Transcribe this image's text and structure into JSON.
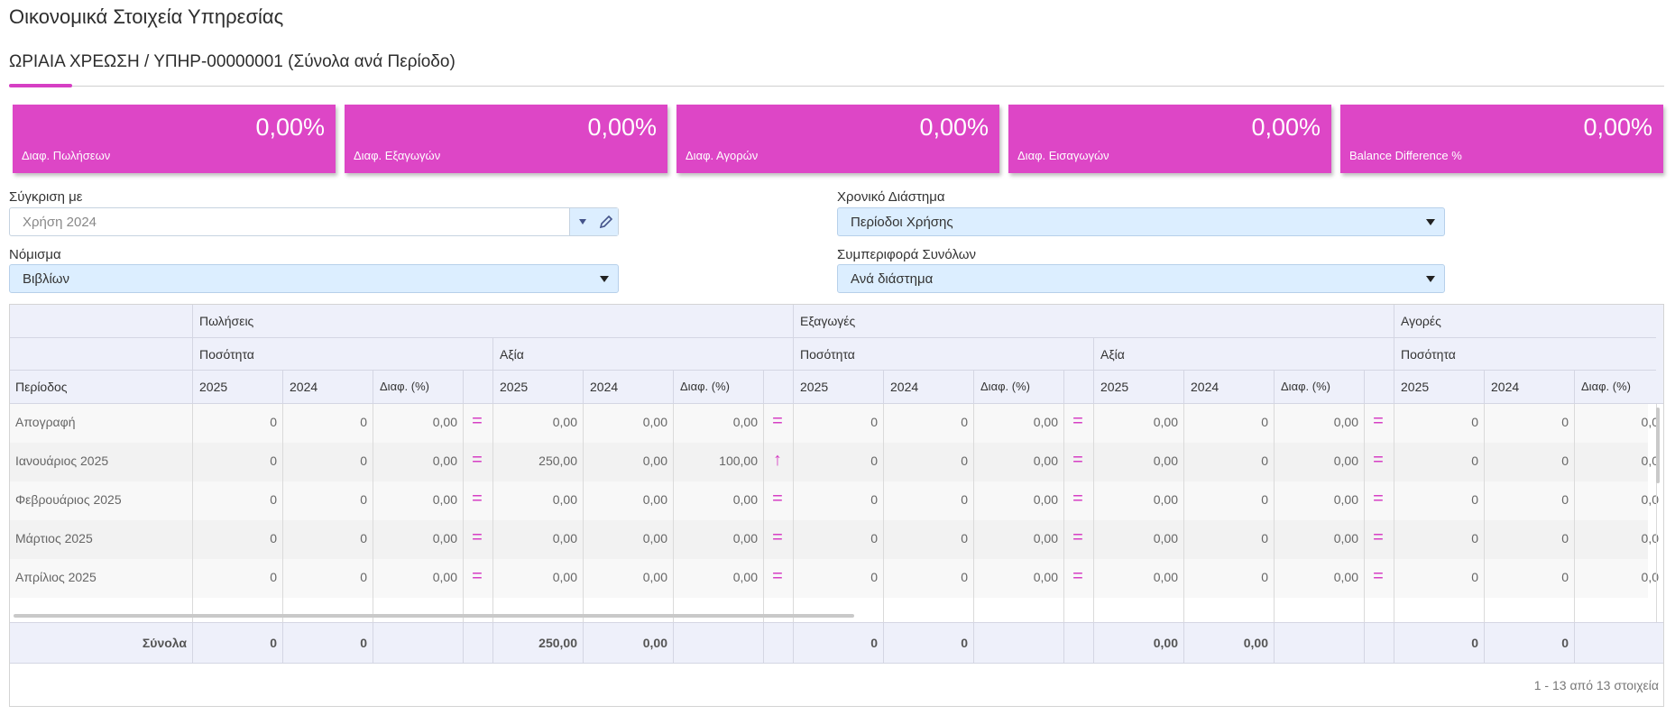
{
  "page": {
    "title": "Οικονομικά Στοιχεία Υπηρεσίας"
  },
  "tab": {
    "label": "ΩΡΙΑΙΑ ΧΡΕΩΣΗ / ΥΠΗΡ-00000001 (Σύνολα ανά Περίοδο)"
  },
  "cards": [
    {
      "value": "0,00%",
      "label": "Διαφ. Πωλήσεων"
    },
    {
      "value": "0,00%",
      "label": "Διαφ. Εξαγωγών"
    },
    {
      "value": "0,00%",
      "label": "Διαφ. Αγορών"
    },
    {
      "value": "0,00%",
      "label": "Διαφ. Εισαγωγών"
    },
    {
      "value": "0,00%",
      "label": "Balance Difference %"
    }
  ],
  "filters": {
    "compare_label": "Σύγκριση με",
    "compare_placeholder": "Χρήση 2024",
    "period_label": "Χρονικό Διάστημα",
    "period_value": "Περίοδοι Χρήσης",
    "currency_label": "Νόμισμα",
    "currency_value": "Βιβλίων",
    "totals_label": "Συμπεριφορά Συνόλων",
    "totals_value": "Ανά διάστημα"
  },
  "grid": {
    "groups": [
      "Πωλήσεις",
      "Εξαγωγές",
      "Αγορές"
    ],
    "subgroups": [
      "Ποσότητα",
      "Αξία",
      "Ποσότητα",
      "Αξία",
      "Ποσότητα"
    ],
    "period_header": "Περίοδος",
    "col_headers": [
      "2025",
      "2024",
      "Διαφ. (%)"
    ],
    "rows": [
      {
        "period": "Απογραφή",
        "v": [
          "0",
          "0",
          "0,00",
          "=",
          "0,00",
          "0,00",
          "0,00",
          "=",
          "0",
          "0",
          "0,00",
          "=",
          "0,00",
          "0",
          "0,00",
          "=",
          "0",
          "0",
          "0,0"
        ]
      },
      {
        "period": "Ιανουάριος 2025",
        "v": [
          "0",
          "0",
          "0,00",
          "=",
          "250,00",
          "0,00",
          "100,00",
          "↑",
          "0",
          "0",
          "0,00",
          "=",
          "0,00",
          "0",
          "0,00",
          "=",
          "0",
          "0",
          "0,0"
        ]
      },
      {
        "period": "Φεβρουάριος 2025",
        "v": [
          "0",
          "0",
          "0,00",
          "=",
          "0,00",
          "0,00",
          "0,00",
          "=",
          "0",
          "0",
          "0,00",
          "=",
          "0,00",
          "0",
          "0,00",
          "=",
          "0",
          "0",
          "0,0"
        ]
      },
      {
        "period": "Μάρτιος 2025",
        "v": [
          "0",
          "0",
          "0,00",
          "=",
          "0,00",
          "0,00",
          "0,00",
          "=",
          "0",
          "0",
          "0,00",
          "=",
          "0,00",
          "0",
          "0,00",
          "=",
          "0",
          "0",
          "0,0"
        ]
      },
      {
        "period": "Απρίλιος 2025",
        "v": [
          "0",
          "0",
          "0,00",
          "=",
          "0,00",
          "0,00",
          "0,00",
          "=",
          "0",
          "0",
          "0,00",
          "=",
          "0,00",
          "0",
          "0,00",
          "=",
          "0",
          "0",
          "0,0"
        ]
      }
    ],
    "totals_label": "Σύνολα",
    "totals": [
      "0",
      "0",
      "",
      "",
      "250,00",
      "0,00",
      "",
      "",
      "0",
      "0",
      "",
      "",
      "0,00",
      "0,00",
      "",
      "",
      "0",
      "0",
      ""
    ],
    "pager": "1 - 13 από 13 στοιχεία"
  }
}
